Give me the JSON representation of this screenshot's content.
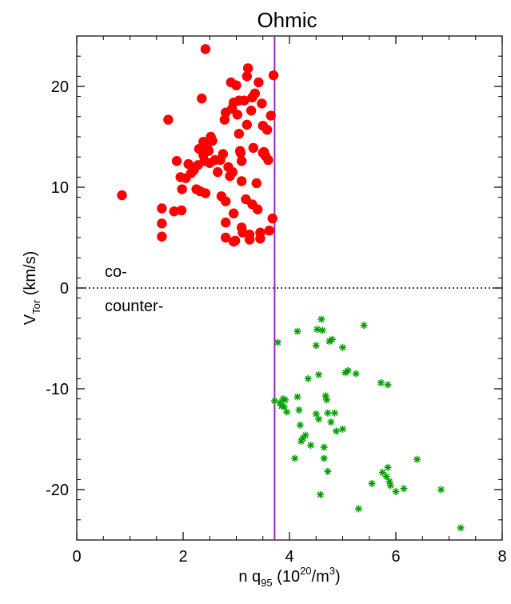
{
  "chart_data": {
    "type": "scatter",
    "title": "Ohmic",
    "xlabel": {
      "main": "n q",
      "sub": "95",
      "unit_pre": " (10",
      "unit_sup": "20",
      "unit_post": "/m",
      "unit_sup2": "3",
      "unit_close": ")"
    },
    "ylabel": {
      "main": "V",
      "sub": "Tor",
      "unit": " (km/s)"
    },
    "xlim": [
      0,
      8
    ],
    "ylim": [
      -25,
      25
    ],
    "xticks": [
      0,
      2,
      4,
      6,
      8
    ],
    "yticks": [
      -20,
      -10,
      0,
      10,
      20
    ],
    "xtick_labels": [
      "0",
      "2",
      "4",
      "6",
      "8"
    ],
    "ytick_labels": [
      "-20",
      "-10",
      "0",
      "10",
      "20"
    ],
    "vline_x": 3.72,
    "vline_color": "#a020c0",
    "zero_line": "dotted",
    "annotations": {
      "co": "co-",
      "counter": "counter-"
    },
    "series": [
      {
        "marker": "circle",
        "color": "#ff0000",
        "points": [
          [
            0.85,
            9.2
          ],
          [
            1.6,
            7.9
          ],
          [
            1.6,
            6.4
          ],
          [
            1.6,
            5.1
          ],
          [
            1.72,
            16.7
          ],
          [
            1.83,
            7.6
          ],
          [
            1.88,
            12.6
          ],
          [
            1.95,
            11.0
          ],
          [
            1.97,
            7.7
          ],
          [
            1.98,
            9.8
          ],
          [
            2.05,
            10.9
          ],
          [
            2.1,
            12.3
          ],
          [
            2.15,
            11.4
          ],
          [
            2.2,
            11.7
          ],
          [
            2.25,
            9.8
          ],
          [
            2.28,
            12.2
          ],
          [
            2.3,
            13.8
          ],
          [
            2.32,
            9.6
          ],
          [
            2.35,
            18.8
          ],
          [
            2.38,
            14.5
          ],
          [
            2.38,
            13.2
          ],
          [
            2.4,
            12.6
          ],
          [
            2.42,
            23.7
          ],
          [
            2.42,
            9.4
          ],
          [
            2.45,
            14.0
          ],
          [
            2.48,
            13.6
          ],
          [
            2.5,
            12.4
          ],
          [
            2.52,
            15.0
          ],
          [
            2.55,
            14.6
          ],
          [
            2.6,
            12.7
          ],
          [
            2.65,
            11.5
          ],
          [
            2.7,
            12.7
          ],
          [
            2.72,
            9.1
          ],
          [
            2.75,
            13.3
          ],
          [
            2.78,
            16.7
          ],
          [
            2.8,
            17.4
          ],
          [
            2.8,
            8.6
          ],
          [
            2.8,
            6.5
          ],
          [
            2.8,
            5.0
          ],
          [
            2.85,
            12.0
          ],
          [
            2.88,
            11.1
          ],
          [
            2.9,
            20.4
          ],
          [
            2.92,
            17.8
          ],
          [
            2.93,
            11.5
          ],
          [
            2.95,
            18.4
          ],
          [
            2.95,
            7.4
          ],
          [
            2.95,
            4.6
          ],
          [
            2.98,
            4.7
          ],
          [
            3.0,
            20.1
          ],
          [
            3.02,
            17.2
          ],
          [
            3.05,
            18.6
          ],
          [
            3.05,
            15.3
          ],
          [
            3.07,
            13.6
          ],
          [
            3.08,
            13.4
          ],
          [
            3.1,
            12.6
          ],
          [
            3.1,
            10.6
          ],
          [
            3.1,
            6.0
          ],
          [
            3.12,
            5.5
          ],
          [
            3.15,
            18.6
          ],
          [
            3.18,
            8.8
          ],
          [
            3.2,
            16.2
          ],
          [
            3.2,
            21.0
          ],
          [
            3.22,
            21.8
          ],
          [
            3.25,
            5.3
          ],
          [
            3.25,
            4.8
          ],
          [
            3.28,
            17.6
          ],
          [
            3.3,
            18.9
          ],
          [
            3.3,
            8.3
          ],
          [
            3.32,
            13.9
          ],
          [
            3.35,
            19.3
          ],
          [
            3.38,
            10.4
          ],
          [
            3.4,
            7.8
          ],
          [
            3.42,
            20.4
          ],
          [
            3.45,
            5.5
          ],
          [
            3.45,
            4.9
          ],
          [
            3.48,
            18.3
          ],
          [
            3.5,
            16.1
          ],
          [
            3.5,
            13.4
          ],
          [
            3.52,
            13.5
          ],
          [
            3.55,
            13.1
          ],
          [
            3.58,
            15.7
          ],
          [
            3.6,
            12.7
          ],
          [
            3.62,
            5.7
          ],
          [
            3.65,
            17.1
          ],
          [
            3.68,
            6.9
          ],
          [
            3.7,
            21.1
          ]
        ]
      },
      {
        "marker": "asterisk",
        "color": "#00a000",
        "points": [
          [
            3.72,
            -11.2
          ],
          [
            3.78,
            -5.4
          ],
          [
            3.82,
            -11.4
          ],
          [
            3.85,
            -11.7
          ],
          [
            3.88,
            -11.0
          ],
          [
            3.9,
            -11.8
          ],
          [
            3.92,
            -11.1
          ],
          [
            3.95,
            -12.3
          ],
          [
            4.1,
            -16.9
          ],
          [
            4.15,
            -4.3
          ],
          [
            4.15,
            -10.8
          ],
          [
            4.18,
            -12.1
          ],
          [
            4.2,
            -13.6
          ],
          [
            4.22,
            -15.2
          ],
          [
            4.25,
            -14.9
          ],
          [
            4.3,
            -14.6
          ],
          [
            4.35,
            -9.0
          ],
          [
            4.4,
            -15.6
          ],
          [
            4.5,
            -12.5
          ],
          [
            4.5,
            -5.7
          ],
          [
            4.52,
            -4.1
          ],
          [
            4.55,
            -13.0
          ],
          [
            4.55,
            -8.6
          ],
          [
            4.58,
            -20.5
          ],
          [
            4.6,
            -3.1
          ],
          [
            4.62,
            -4.2
          ],
          [
            4.65,
            -16.9
          ],
          [
            4.65,
            -15.8
          ],
          [
            4.68,
            -10.7
          ],
          [
            4.7,
            -11.1
          ],
          [
            4.72,
            -12.4
          ],
          [
            4.72,
            -18.2
          ],
          [
            4.75,
            -5.3
          ],
          [
            4.78,
            -13.3
          ],
          [
            4.8,
            -5.1
          ],
          [
            4.85,
            -12.4
          ],
          [
            4.88,
            -14.2
          ],
          [
            5.0,
            -14.0
          ],
          [
            5.0,
            -5.9
          ],
          [
            5.05,
            -8.4
          ],
          [
            5.1,
            -8.2
          ],
          [
            5.25,
            -8.5
          ],
          [
            5.3,
            -21.9
          ],
          [
            5.4,
            -3.7
          ],
          [
            5.55,
            -19.4
          ],
          [
            5.72,
            -9.4
          ],
          [
            5.75,
            -18.3
          ],
          [
            5.82,
            -18.7
          ],
          [
            5.85,
            -9.6
          ],
          [
            5.85,
            -17.8
          ],
          [
            5.88,
            -19.2
          ],
          [
            5.9,
            -19.6
          ],
          [
            6.0,
            -20.2
          ],
          [
            6.15,
            -19.9
          ],
          [
            6.4,
            -17.0
          ],
          [
            6.85,
            -20.0
          ],
          [
            7.22,
            -23.8
          ]
        ]
      }
    ]
  }
}
